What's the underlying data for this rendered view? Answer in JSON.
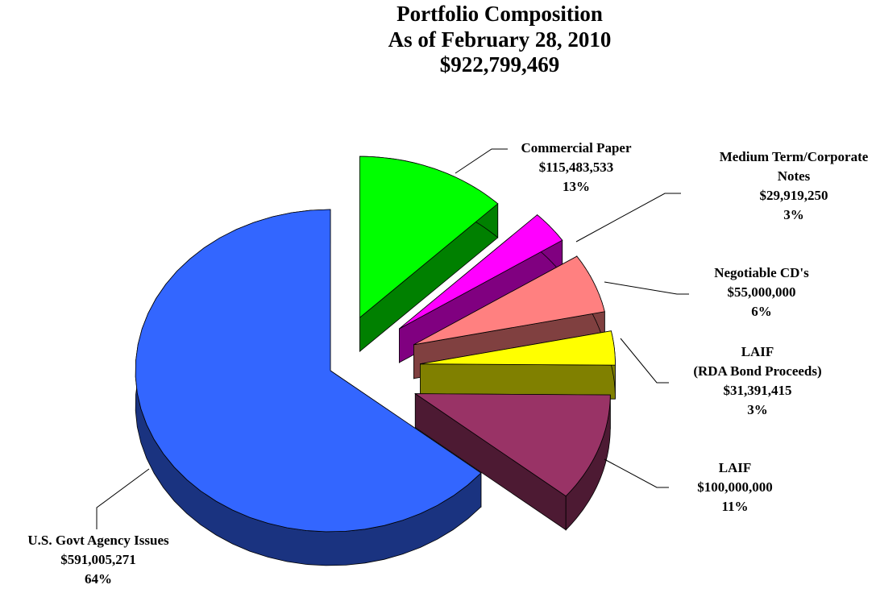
{
  "chart_data": {
    "type": "pie3d",
    "title": "Portfolio Composition",
    "subtitle": "As of February 28, 2010",
    "total_label": "$922,799,469",
    "categories": [
      "U.S. Govt Agency Issues",
      "Commercial  Paper",
      "Medium Term/Corporate\nNotes",
      "Negotiable CD's",
      "LAIF\n(RDA Bond Proceeds)",
      "LAIF"
    ],
    "values": [
      591005271,
      115483533,
      29919250,
      55000000,
      31391415,
      100000000
    ],
    "value_labels": [
      "$591,005,271",
      "$115,483,533",
      "$29,919,250",
      "$55,000,000",
      "$31,391,415",
      "$100,000,000"
    ],
    "percent_labels": [
      "64%",
      "13%",
      "3%",
      "6%",
      "3%",
      "11%"
    ],
    "colors": [
      "#3366ff",
      "#00ff00",
      "#ff00ff",
      "#ff8080",
      "#ffff00",
      "#993366"
    ]
  }
}
